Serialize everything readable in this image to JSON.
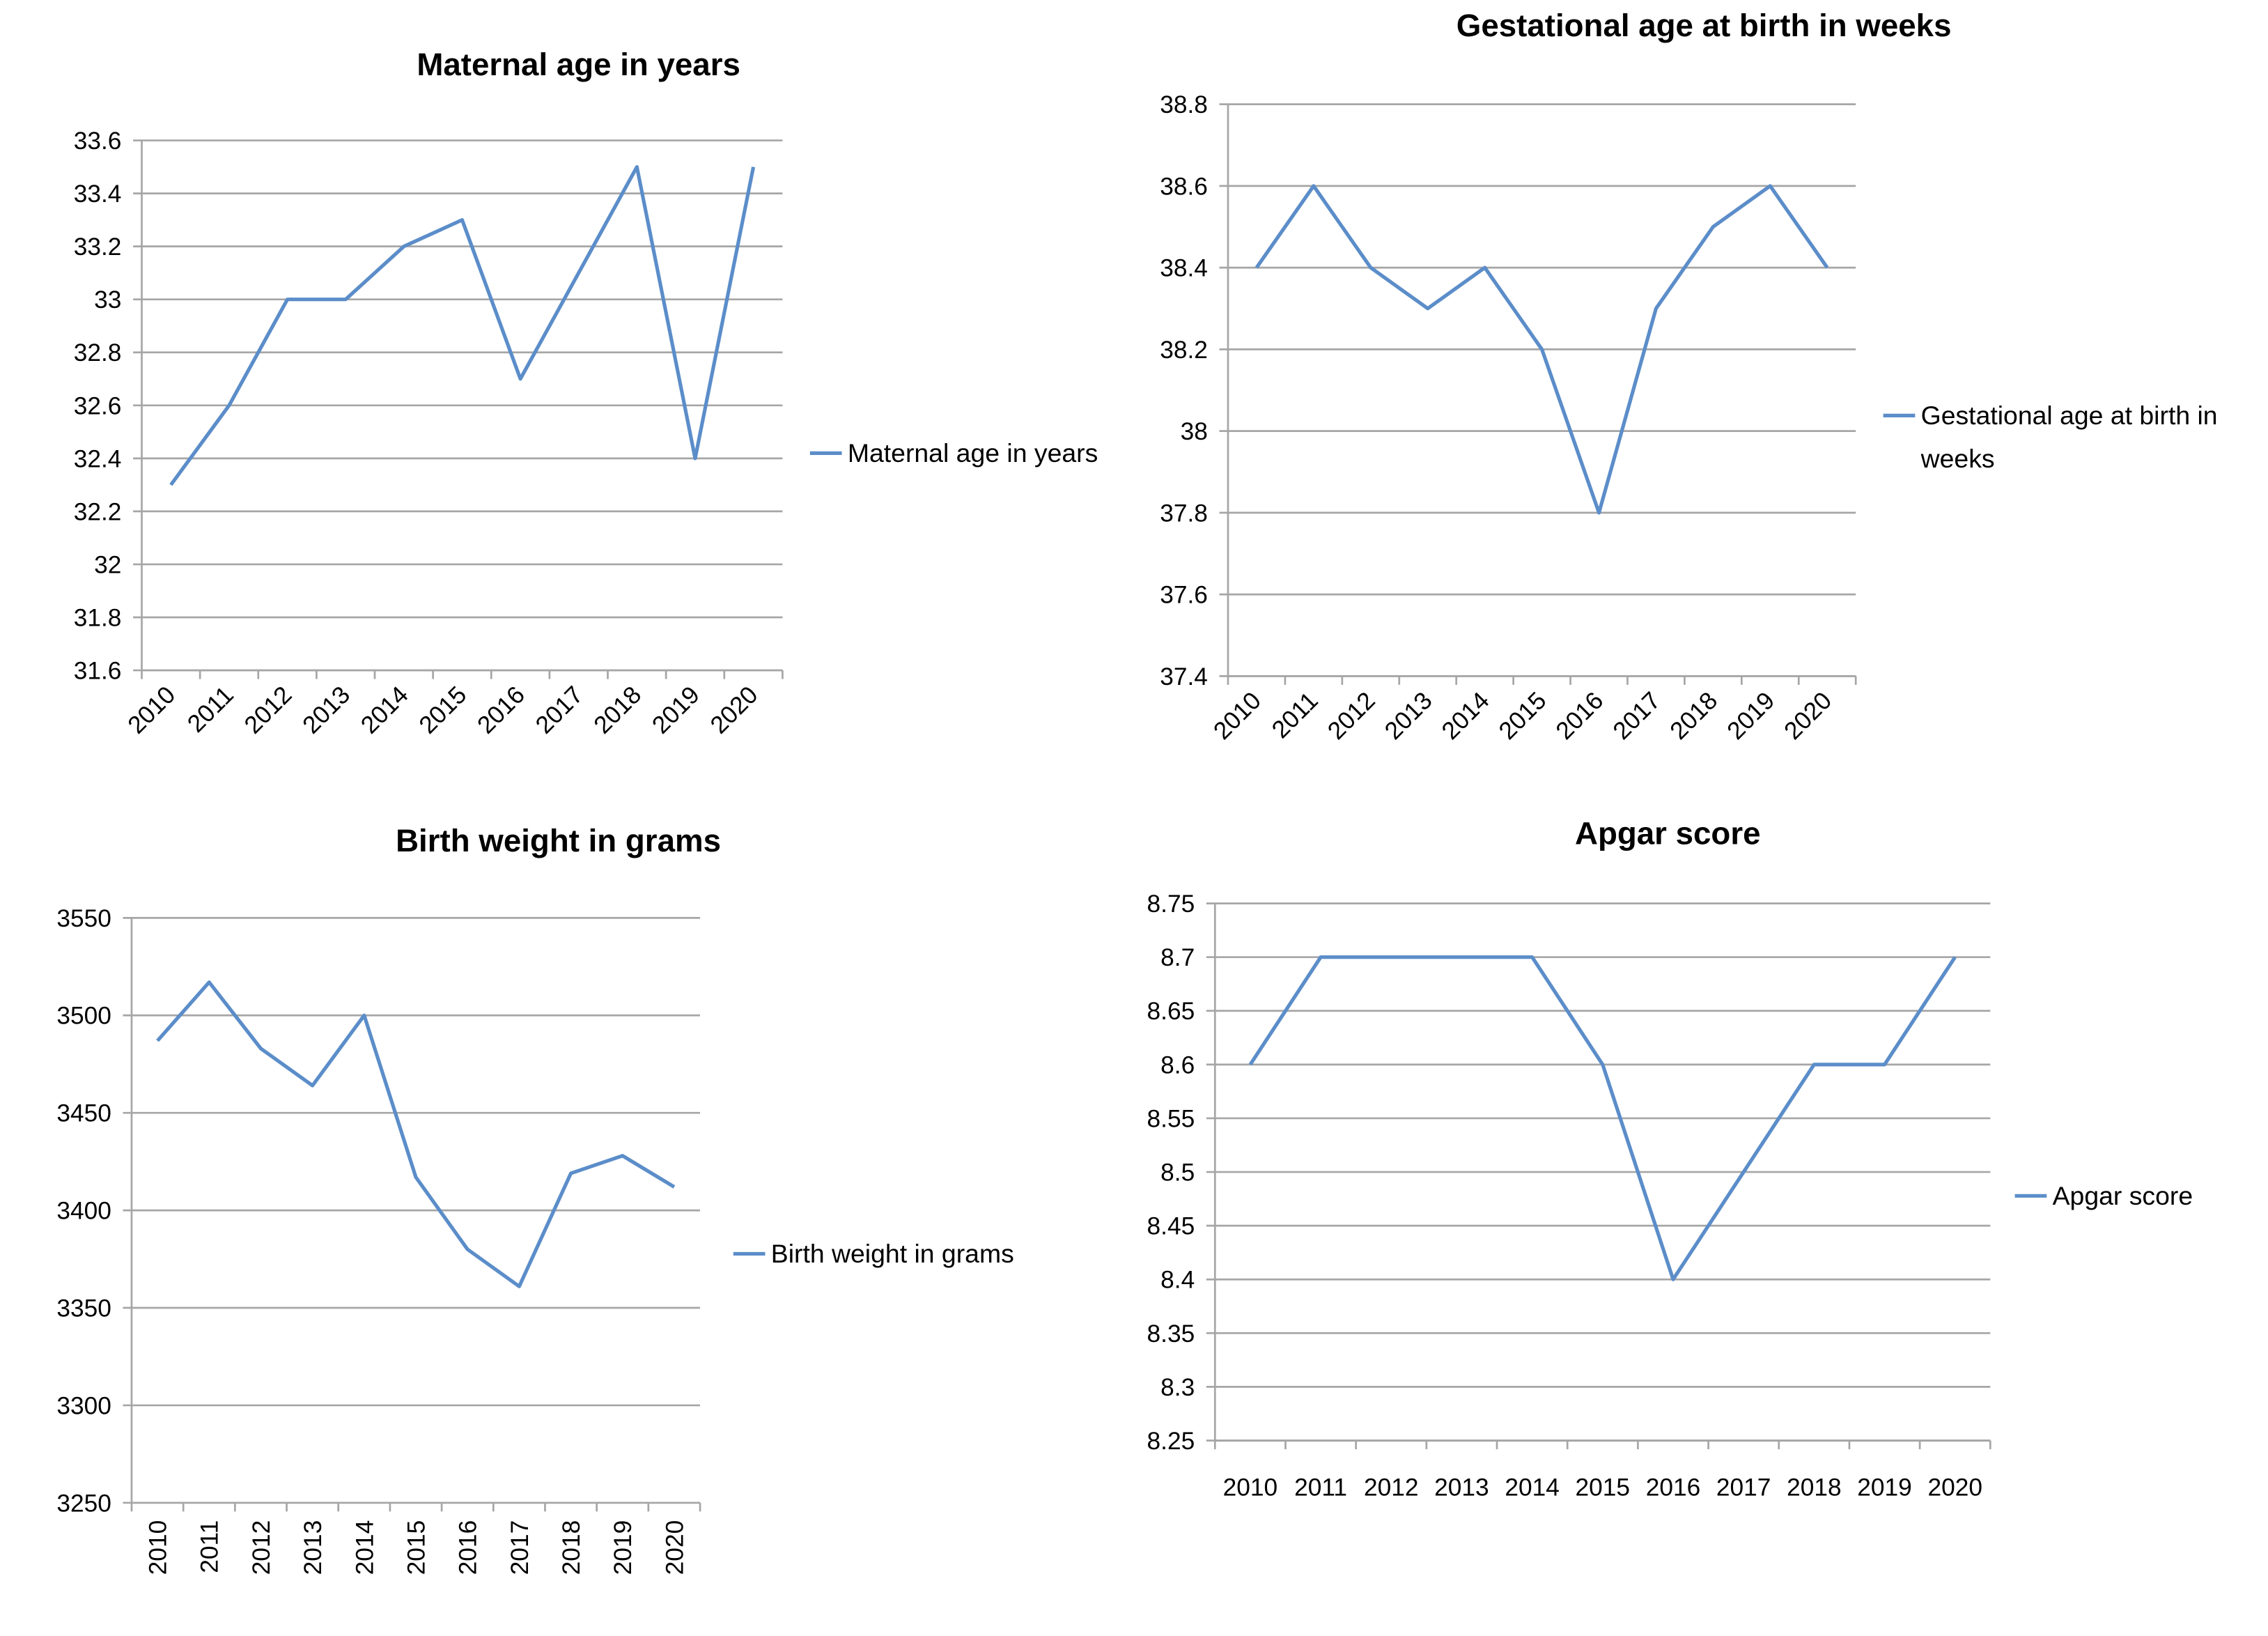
{
  "chart_data": [
    {
      "type": "line",
      "title": "Maternal age in years",
      "categories": [
        "2010",
        "2011",
        "2012",
        "2013",
        "2014",
        "2015",
        "2016",
        "2017",
        "2018",
        "2019",
        "2020"
      ],
      "series": [
        {
          "name": "Maternal age in years",
          "color": "#5b8dc9",
          "values": [
            32.3,
            32.6,
            33.0,
            33.0,
            33.2,
            33.3,
            32.7,
            33.1,
            33.5,
            32.4,
            33.5
          ]
        }
      ],
      "ylim": [
        31.6,
        33.6
      ],
      "yticks": [
        31.6,
        31.8,
        32,
        32.2,
        32.4,
        32.6,
        32.8,
        33,
        33.2,
        33.4,
        33.6
      ],
      "grid": true,
      "legend": "right"
    },
    {
      "type": "line",
      "title": "Gestational age at birth in weeks",
      "categories": [
        "2010",
        "2011",
        "2012",
        "2013",
        "2014",
        "2015",
        "2016",
        "2017",
        "2018",
        "2019",
        "2020"
      ],
      "series": [
        {
          "name": "Gestational age at birth in weeks",
          "color": "#5b8dc9",
          "values": [
            38.4,
            38.6,
            38.4,
            38.3,
            38.4,
            38.2,
            37.8,
            38.3,
            38.5,
            38.6,
            38.4
          ]
        }
      ],
      "ylim": [
        37.4,
        38.8
      ],
      "yticks": [
        37.4,
        37.6,
        37.8,
        38,
        38.2,
        38.4,
        38.6,
        38.8
      ],
      "grid": true,
      "legend": "right"
    },
    {
      "type": "line",
      "title": "Birth weight in grams",
      "categories": [
        "2010",
        "2011",
        "2012",
        "2013",
        "2014",
        "2015",
        "2016",
        "2017",
        "2018",
        "2019",
        "2020"
      ],
      "series": [
        {
          "name": "Birth weight in grams",
          "color": "#5b8dc9",
          "values": [
            3487,
            3517,
            3483,
            3464,
            3500,
            3417,
            3380,
            3361,
            3419,
            3428,
            3412
          ]
        }
      ],
      "ylim": [
        3250,
        3550
      ],
      "yticks": [
        3250,
        3300,
        3350,
        3400,
        3450,
        3500,
        3550
      ],
      "grid": true,
      "legend": "right"
    },
    {
      "type": "line",
      "title": "Apgar score",
      "categories": [
        "2010",
        "2011",
        "2012",
        "2013",
        "2014",
        "2015",
        "2016",
        "2017",
        "2018",
        "2019",
        "2020"
      ],
      "series": [
        {
          "name": "Apgar score",
          "color": "#5b8dc9",
          "values": [
            8.6,
            8.7,
            8.7,
            8.7,
            8.7,
            8.6,
            8.4,
            8.5,
            8.6,
            8.6,
            8.7
          ]
        }
      ],
      "ylim": [
        8.25,
        8.75
      ],
      "yticks": [
        8.25,
        8.3,
        8.35,
        8.4,
        8.45,
        8.5,
        8.55,
        8.6,
        8.65,
        8.7,
        8.75
      ],
      "grid": true,
      "legend": "right"
    }
  ]
}
